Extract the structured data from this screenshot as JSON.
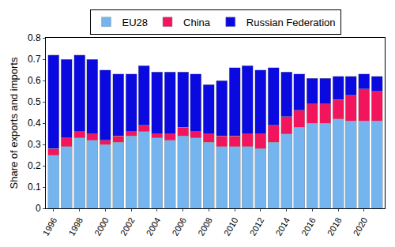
{
  "chart_data": {
    "type": "bar",
    "stacked": true,
    "y_label": "Share of exports and imports",
    "categories": [
      "1996",
      null,
      "1998",
      null,
      "2000",
      null,
      "2002",
      null,
      "2004",
      null,
      "2006",
      null,
      "2008",
      null,
      "2010",
      null,
      "2012",
      null,
      "2014",
      null,
      "2016",
      null,
      "2018",
      null,
      "2020",
      null
    ],
    "series": [
      {
        "name": "EU28",
        "color": "#74b4ef",
        "values": [
          0.25,
          0.29,
          0.33,
          0.32,
          0.3,
          0.31,
          0.34,
          0.36,
          0.33,
          0.32,
          0.34,
          0.33,
          0.31,
          0.29,
          0.29,
          0.29,
          0.28,
          0.31,
          0.35,
          0.38,
          0.4,
          0.4,
          0.42,
          0.41,
          0.41,
          0.41
        ]
      },
      {
        "name": "China",
        "color": "#f2145c",
        "values": [
          0.03,
          0.04,
          0.03,
          0.03,
          0.02,
          0.03,
          0.02,
          0.03,
          0.02,
          0.03,
          0.04,
          0.03,
          0.04,
          0.05,
          0.05,
          0.06,
          0.07,
          0.08,
          0.08,
          0.08,
          0.09,
          0.09,
          0.09,
          0.12,
          0.15,
          0.14
        ]
      },
      {
        "name": "Russian Federation",
        "color": "#0a0ae0",
        "values": [
          0.44,
          0.37,
          0.36,
          0.35,
          0.33,
          0.29,
          0.27,
          0.28,
          0.29,
          0.29,
          0.26,
          0.27,
          0.23,
          0.26,
          0.32,
          0.32,
          0.3,
          0.27,
          0.21,
          0.17,
          0.12,
          0.12,
          0.11,
          0.09,
          0.07,
          0.07
        ]
      }
    ],
    "ylim": [
      0,
      0.8
    ],
    "yticks": [
      0,
      0.1,
      0.2,
      0.3,
      0.4,
      0.5,
      0.6,
      0.7,
      0.8
    ],
    "grid": false,
    "legend": "top"
  }
}
